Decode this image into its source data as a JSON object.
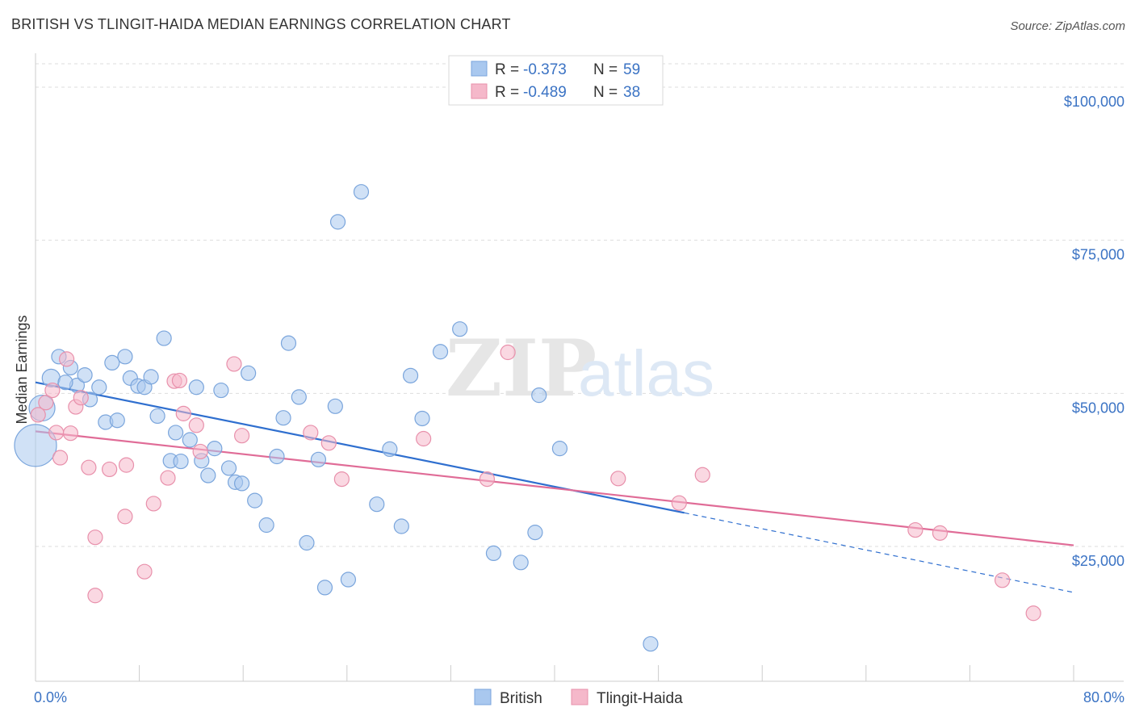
{
  "header": {
    "title": "BRITISH VS TLINGIT-HAIDA MEDIAN EARNINGS CORRELATION CHART",
    "source": "Source: ZipAtlas.com"
  },
  "watermark": {
    "zip": "ZIP",
    "atlas": "atlas"
  },
  "legend": {
    "rows": [
      {
        "r_label": "R =",
        "r_value": "-0.373",
        "n_label": "N =",
        "n_value": "59",
        "color": "#a9c8ef"
      },
      {
        "r_label": "R =",
        "r_value": "-0.489",
        "n_label": "N =",
        "n_value": "38",
        "color": "#f5b8ca"
      }
    ]
  },
  "bottom_legend": [
    {
      "label": "British",
      "color": "#a9c8ef"
    },
    {
      "label": "Tlingit-Haida",
      "color": "#f5b8ca"
    }
  ],
  "chart_data": {
    "type": "scatter",
    "title": "BRITISH VS TLINGIT-HAIDA MEDIAN EARNINGS CORRELATION CHART",
    "ylabel": "Median Earnings",
    "xlabel": "",
    "xlim": [
      0,
      80
    ],
    "ylim": [
      3000,
      105000
    ],
    "x_tick_labels": [
      "0.0%",
      "80.0%"
    ],
    "y_ticks": [
      {
        "value": 25000,
        "label": "$25,000"
      },
      {
        "value": 50000,
        "label": "$50,000"
      },
      {
        "value": 75000,
        "label": "$75,000"
      },
      {
        "value": 100000,
        "label": "$100,000"
      }
    ],
    "grid": "horizontal-dashed",
    "series": [
      {
        "name": "British",
        "color": "#a9c8ef",
        "edge": "#7aa5dc",
        "trend": {
          "x0": 0,
          "y0": 51800,
          "x1": 50,
          "y1": 30500,
          "dash_to_x": 80,
          "dash_to_y": 17500,
          "color": "#2f6fcf"
        },
        "points": [
          [
            0.5,
            47600,
            16
          ],
          [
            0,
            41500,
            26
          ],
          [
            1.2,
            52500,
            11
          ],
          [
            1.8,
            56000,
            9
          ],
          [
            2.7,
            54200,
            9
          ],
          [
            3.2,
            51300,
            9
          ],
          [
            3.8,
            53000,
            9
          ],
          [
            4.2,
            49000,
            9
          ],
          [
            4.9,
            51000,
            9
          ],
          [
            5.4,
            45300,
            9
          ],
          [
            5.9,
            55000,
            9
          ],
          [
            6.3,
            45600,
            9
          ],
          [
            6.9,
            56000,
            9
          ],
          [
            7.3,
            52500,
            9
          ],
          [
            7.9,
            51200,
            9
          ],
          [
            8.4,
            51000,
            9
          ],
          [
            8.9,
            52700,
            9
          ],
          [
            9.4,
            46300,
            9
          ],
          [
            9.9,
            59000,
            9
          ],
          [
            10.4,
            39000,
            9
          ],
          [
            10.8,
            43600,
            9
          ],
          [
            11.2,
            38900,
            9
          ],
          [
            11.9,
            42400,
            9
          ],
          [
            12.4,
            51000,
            9
          ],
          [
            12.8,
            39000,
            9
          ],
          [
            13.3,
            36600,
            9
          ],
          [
            13.8,
            41000,
            9
          ],
          [
            14.3,
            50500,
            9
          ],
          [
            14.9,
            37800,
            9
          ],
          [
            15.4,
            35500,
            9
          ],
          [
            15.9,
            35300,
            9
          ],
          [
            16.4,
            53300,
            9
          ],
          [
            16.9,
            32500,
            9
          ],
          [
            17.8,
            28500,
            9
          ],
          [
            18.6,
            39700,
            9
          ],
          [
            19.1,
            46000,
            9
          ],
          [
            19.5,
            58200,
            9
          ],
          [
            20.3,
            49400,
            9
          ],
          [
            20.9,
            25600,
            9
          ],
          [
            21.8,
            39200,
            9
          ],
          [
            22.3,
            18300,
            9
          ],
          [
            23.1,
            47900,
            9
          ],
          [
            23.3,
            78000,
            9
          ],
          [
            24.1,
            19600,
            9
          ],
          [
            25.1,
            82900,
            9
          ],
          [
            26.3,
            31900,
            9
          ],
          [
            27.3,
            40900,
            9
          ],
          [
            28.2,
            28300,
            9
          ],
          [
            28.9,
            52900,
            9
          ],
          [
            29.8,
            45900,
            9
          ],
          [
            31.2,
            56800,
            9
          ],
          [
            32.7,
            60500,
            9
          ],
          [
            35.3,
            23900,
            9
          ],
          [
            37.4,
            22400,
            9
          ],
          [
            38.5,
            27300,
            9
          ],
          [
            38.8,
            49700,
            9
          ],
          [
            40.4,
            41000,
            9
          ],
          [
            47.4,
            9100,
            9
          ],
          [
            2.3,
            51800,
            9
          ]
        ]
      },
      {
        "name": "Tlingit-Haida",
        "color": "#f5b8ca",
        "edge": "#e890ab",
        "trend": {
          "x0": 0,
          "y0": 43800,
          "x1": 80,
          "y1": 25200,
          "color": "#e06c97"
        },
        "points": [
          [
            0.2,
            46500,
            9
          ],
          [
            0.8,
            48500,
            9
          ],
          [
            1.3,
            50500,
            9
          ],
          [
            1.6,
            43600,
            9
          ],
          [
            1.9,
            39500,
            9
          ],
          [
            2.4,
            55600,
            9
          ],
          [
            2.7,
            43500,
            9
          ],
          [
            3.1,
            47800,
            9
          ],
          [
            3.5,
            49300,
            9
          ],
          [
            4.1,
            37900,
            9
          ],
          [
            4.6,
            26500,
            9
          ],
          [
            4.6,
            17000,
            9
          ],
          [
            5.7,
            37600,
            9
          ],
          [
            6.9,
            29900,
            9
          ],
          [
            7.0,
            38300,
            9
          ],
          [
            8.4,
            20900,
            9
          ],
          [
            9.1,
            32000,
            9
          ],
          [
            10.2,
            36200,
            9
          ],
          [
            10.7,
            52000,
            9
          ],
          [
            11.1,
            52100,
            9
          ],
          [
            11.4,
            46700,
            9
          ],
          [
            12.4,
            44800,
            9
          ],
          [
            12.7,
            40500,
            9
          ],
          [
            15.3,
            54800,
            9
          ],
          [
            15.9,
            43100,
            9
          ],
          [
            21.2,
            43600,
            9
          ],
          [
            22.6,
            41900,
            9
          ],
          [
            23.6,
            36000,
            9
          ],
          [
            29.9,
            42600,
            9
          ],
          [
            34.8,
            36000,
            9
          ],
          [
            36.4,
            56700,
            9
          ],
          [
            44.9,
            36100,
            9
          ],
          [
            49.6,
            32100,
            9
          ],
          [
            51.4,
            36700,
            9
          ],
          [
            67.8,
            27700,
            9
          ],
          [
            69.7,
            27200,
            9
          ],
          [
            74.5,
            19500,
            9
          ],
          [
            76.9,
            14100,
            9
          ]
        ]
      }
    ]
  }
}
